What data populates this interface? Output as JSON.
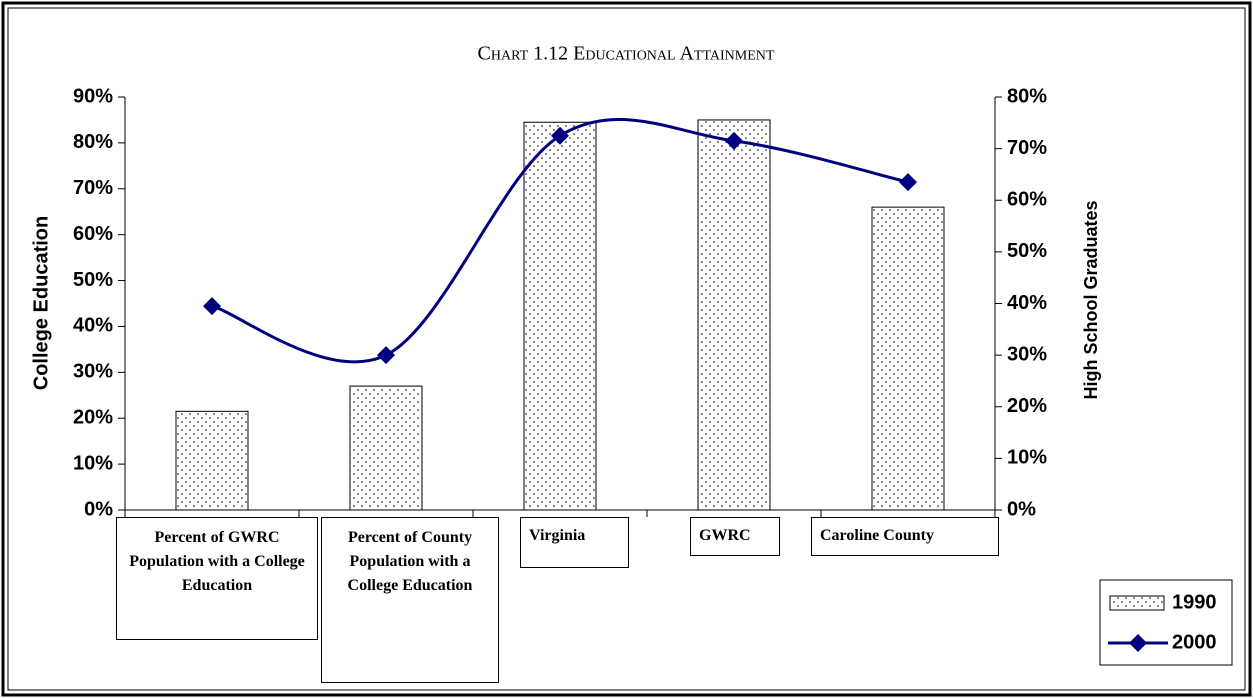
{
  "chart_data": {
    "type": "bar_line",
    "title": "Chart 1.12 Educational Attainment",
    "y_label": "College Education",
    "y2_label": "High School Graduates",
    "categories": [
      "Percent of GWRC Population with a College Education",
      "Percent of County Population with a College Education",
      "Virginia",
      "GWRC",
      "Caroline County"
    ],
    "series": [
      {
        "name": "1990",
        "type": "bar",
        "axis": "y",
        "color": "#000000",
        "values": [
          21.5,
          27,
          84.5,
          85,
          66
        ]
      },
      {
        "name": "2000",
        "type": "line",
        "axis": "y2",
        "color": "#000080",
        "values": [
          39.5,
          30,
          72.5,
          71.5,
          63.5
        ]
      }
    ],
    "ylim": [
      0,
      90
    ],
    "yticks": [
      {
        "value": 0,
        "label": "0%"
      },
      {
        "value": 10,
        "label": "10%"
      },
      {
        "value": 20,
        "label": "20%"
      },
      {
        "value": 30,
        "label": "30%"
      },
      {
        "value": 40,
        "label": "40%"
      },
      {
        "value": 50,
        "label": "50%"
      },
      {
        "value": 60,
        "label": "60%"
      },
      {
        "value": 70,
        "label": "70%"
      },
      {
        "value": 80,
        "label": "80%"
      },
      {
        "value": 90,
        "label": "90%"
      }
    ],
    "y2lim": [
      0,
      80
    ],
    "y2ticks": [
      {
        "value": 0,
        "label": "0%"
      },
      {
        "value": 10,
        "label": "10%"
      },
      {
        "value": 20,
        "label": "20%"
      },
      {
        "value": 30,
        "label": "30%"
      },
      {
        "value": 40,
        "label": "40%"
      },
      {
        "value": 50,
        "label": "50%"
      },
      {
        "value": 60,
        "label": "60%"
      },
      {
        "value": 70,
        "label": "70%"
      },
      {
        "value": 80,
        "label": "80%"
      }
    ],
    "legend": "bottom-right"
  }
}
